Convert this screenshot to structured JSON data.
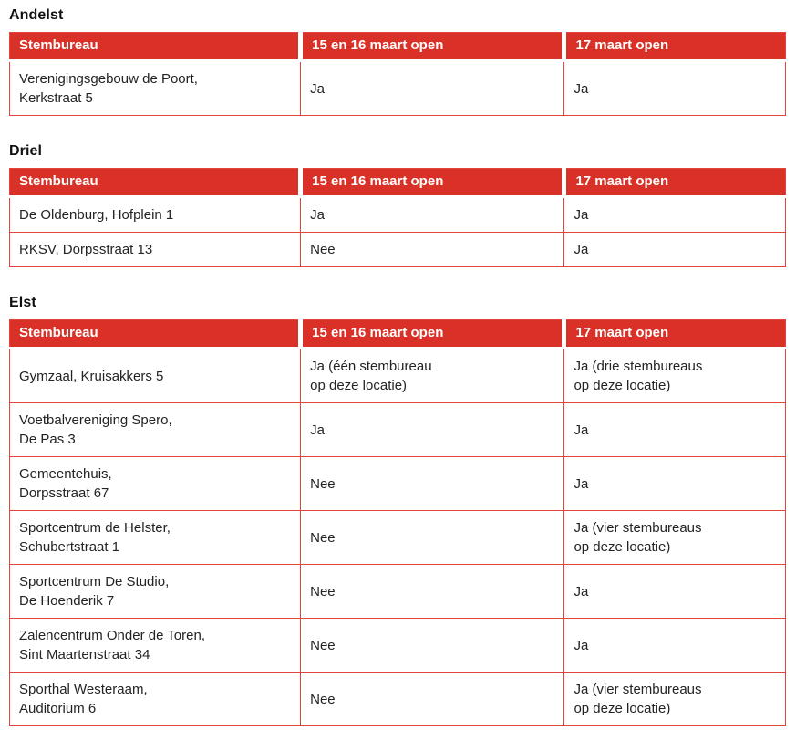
{
  "colors": {
    "header_bg": "#d93127",
    "table_border": "#e2453b",
    "header_text": "#ffffff",
    "body_text": "#232323"
  },
  "tables": [
    {
      "title": "Andelst",
      "headers": [
        "Stembureau",
        "15 en 16 maart open",
        "17 maart open"
      ],
      "rows": [
        [
          "Verenigingsgebouw de Poort,\nKerkstraat 5",
          "Ja",
          "Ja"
        ]
      ]
    },
    {
      "title": "Driel",
      "headers": [
        "Stembureau",
        "15 en 16 maart open",
        "17 maart open"
      ],
      "rows": [
        [
          "De Oldenburg, Hofplein 1",
          "Ja",
          "Ja"
        ],
        [
          "RKSV, Dorpsstraat 13",
          "Nee",
          "Ja"
        ]
      ]
    },
    {
      "title": "Elst",
      "headers": [
        "Stembureau",
        "15 en 16 maart open",
        "17 maart open"
      ],
      "rows": [
        [
          "Gymzaal, Kruisakkers 5",
          "Ja (één stembureau\nop deze locatie)",
          "Ja (drie stembureaus\nop deze locatie)"
        ],
        [
          "Voetbalvereniging Spero,\nDe Pas 3",
          "Ja",
          "Ja"
        ],
        [
          "Gemeentehuis,\nDorpsstraat 67",
          "Nee",
          "Ja"
        ],
        [
          "Sportcentrum de Helster,\nSchubertstraat 1",
          "Nee",
          "Ja (vier stembureaus\nop deze locatie)"
        ],
        [
          "Sportcentrum De Studio,\nDe Hoenderik 7",
          "Nee",
          "Ja"
        ],
        [
          "Zalencentrum Onder de Toren,\nSint Maartenstraat 34",
          "Nee",
          "Ja"
        ],
        [
          "Sporthal Westeraam,\nAuditorium 6",
          "Nee",
          "Ja (vier stembureaus\nop deze locatie)"
        ]
      ]
    }
  ]
}
